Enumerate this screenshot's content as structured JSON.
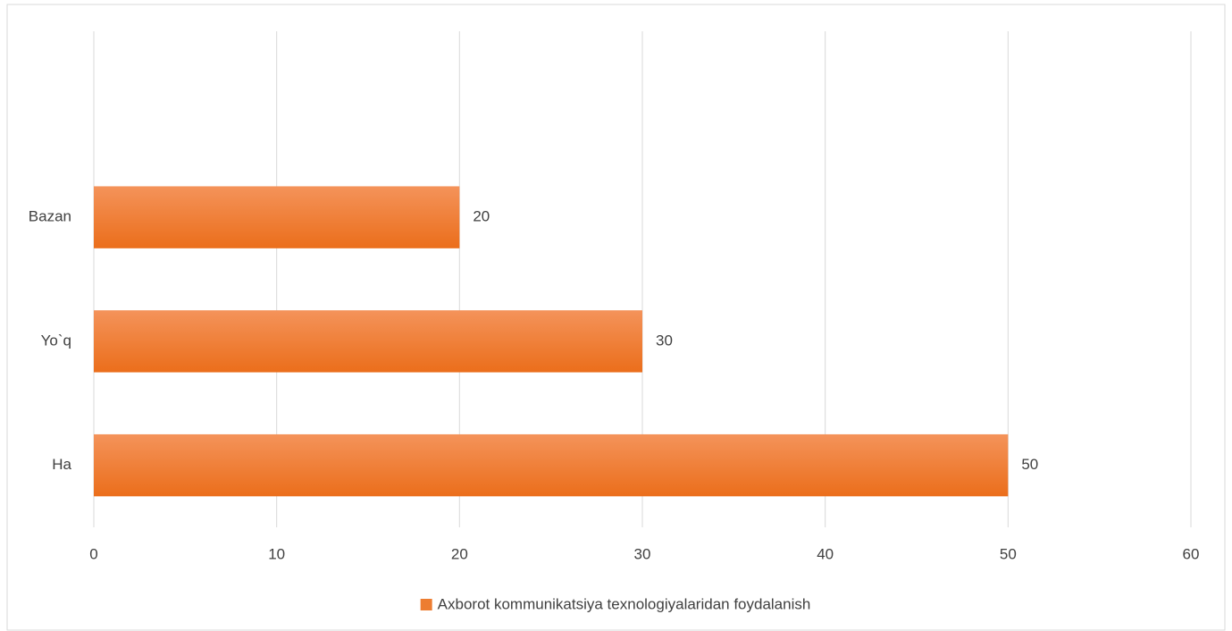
{
  "chart_data": {
    "type": "bar",
    "orientation": "horizontal",
    "categories": [
      "Ha",
      "Yo`q",
      "Bazan",
      null
    ],
    "series": [
      {
        "name": "Axborot kommunikatsiya texnologiyalaridan foydalanish",
        "color": "#ed7d31",
        "values": [
          50,
          30,
          20,
          null
        ]
      }
    ],
    "xlim": [
      0,
      60
    ],
    "xticks": [
      0,
      10,
      20,
      30,
      40,
      50,
      60
    ],
    "grid": true,
    "legend": "bottom"
  }
}
